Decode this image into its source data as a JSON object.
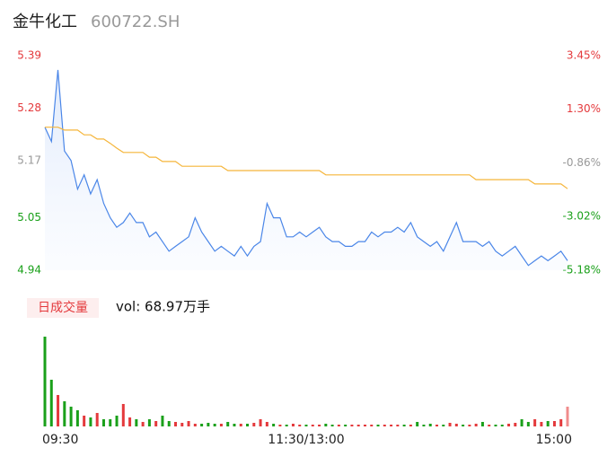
{
  "header": {
    "title": "金牛化工",
    "code": "600722.SH"
  },
  "chart_data": [
    {
      "type": "line",
      "categories": [
        "09:30",
        null,
        null,
        null,
        null,
        null,
        null,
        null,
        null,
        null,
        null,
        null,
        null,
        null,
        null,
        null,
        null,
        null,
        null,
        null,
        null,
        null,
        null,
        null,
        null,
        null,
        null,
        null,
        null,
        null,
        null,
        null,
        null,
        null,
        null,
        null,
        null,
        null,
        null,
        null,
        "11:30/13:00",
        null,
        null,
        null,
        null,
        null,
        null,
        null,
        null,
        null,
        null,
        null,
        null,
        null,
        null,
        null,
        null,
        null,
        null,
        null,
        null,
        null,
        null,
        null,
        null,
        null,
        null,
        null,
        null,
        null,
        null,
        null,
        null,
        null,
        null,
        null,
        null,
        null,
        null,
        null,
        "15:00"
      ],
      "series": [
        {
          "color": "#4a86e8",
          "values": [
            5.24,
            5.21,
            5.36,
            5.19,
            5.17,
            5.11,
            5.14,
            5.1,
            5.13,
            5.08,
            5.05,
            5.03,
            5.04,
            5.06,
            5.04,
            5.04,
            5.01,
            5.02,
            5.0,
            4.98,
            4.99,
            5.0,
            5.01,
            5.05,
            5.02,
            5.0,
            4.98,
            4.99,
            4.98,
            4.97,
            4.99,
            4.97,
            4.99,
            5.0,
            5.08,
            5.05,
            5.05,
            5.01,
            5.01,
            5.02,
            5.01,
            5.02,
            5.03,
            5.01,
            5.0,
            5.0,
            4.99,
            4.99,
            5.0,
            5.0,
            5.02,
            5.01,
            5.02,
            5.02,
            5.03,
            5.02,
            5.04,
            5.01,
            5.0,
            4.99,
            5.0,
            4.98,
            5.01,
            5.04,
            5.0,
            5.0,
            5.0,
            4.99,
            5.0,
            4.98,
            4.97,
            4.98,
            4.99,
            4.97,
            4.95,
            4.96,
            4.97,
            4.96,
            4.97,
            4.98,
            4.96
          ]
        },
        {
          "color": "#f5b53a",
          "values": [
            5.24,
            5.24,
            5.24,
            5.234,
            5.234,
            5.234,
            5.224,
            5.224,
            5.215,
            5.215,
            5.206,
            5.196,
            5.187,
            5.187,
            5.187,
            5.187,
            5.177,
            5.177,
            5.168,
            5.168,
            5.168,
            5.158,
            5.158,
            5.158,
            5.158,
            5.158,
            5.158,
            5.158,
            5.149,
            5.149,
            5.149,
            5.149,
            5.149,
            5.149,
            5.149,
            5.149,
            5.149,
            5.149,
            5.149,
            5.149,
            5.149,
            5.149,
            5.149,
            5.14,
            5.14,
            5.14,
            5.14,
            5.14,
            5.14,
            5.14,
            5.14,
            5.14,
            5.14,
            5.14,
            5.14,
            5.14,
            5.14,
            5.14,
            5.14,
            5.14,
            5.14,
            5.14,
            5.14,
            5.14,
            5.14,
            5.14,
            5.13,
            5.13,
            5.13,
            5.13,
            5.13,
            5.13,
            5.13,
            5.13,
            5.13,
            5.121,
            5.121,
            5.121,
            5.121,
            5.121,
            5.111
          ]
        }
      ],
      "ylim": [
        4.94,
        5.39
      ],
      "yticks": [
        5.39,
        5.28,
        5.17,
        5.05,
        4.94
      ],
      "y2lim": [
        -5.18,
        3.45
      ],
      "y2ticks": [
        {
          "value": 3.45,
          "label": "3.45%"
        },
        {
          "value": 1.3,
          "label": "1.30%"
        },
        {
          "value": -0.86,
          "label": "-0.86%"
        },
        {
          "value": -3.02,
          "label": "-3.02%"
        },
        {
          "value": -5.18,
          "label": "-5.18%"
        }
      ],
      "tick_colors": [
        "#e4393c",
        "#e4393c",
        "#999999",
        "#1aa01a",
        "#1aa01a"
      ]
    },
    {
      "type": "bar",
      "label": "日成交量",
      "summary": "vol: 68.97万手",
      "up_color": "#e4393c",
      "down_color": "#1aa01a",
      "values": [
        100,
        52,
        35,
        28,
        22,
        18,
        12,
        10,
        15,
        8,
        8,
        12,
        25,
        10,
        8,
        5,
        8,
        6,
        12,
        6,
        5,
        4,
        6,
        3,
        3,
        4,
        3,
        3,
        5,
        3,
        3,
        3,
        4,
        8,
        5,
        3,
        2,
        2,
        3,
        2,
        2,
        2,
        2,
        3,
        2,
        2,
        2,
        2,
        2,
        2,
        2,
        2,
        2,
        2,
        2,
        2,
        2,
        5,
        2,
        3,
        2,
        2,
        4,
        3,
        2,
        2,
        3,
        5,
        2,
        2,
        2,
        3,
        4,
        8,
        5,
        8,
        5,
        6,
        6,
        8,
        22
      ]
    }
  ]
}
